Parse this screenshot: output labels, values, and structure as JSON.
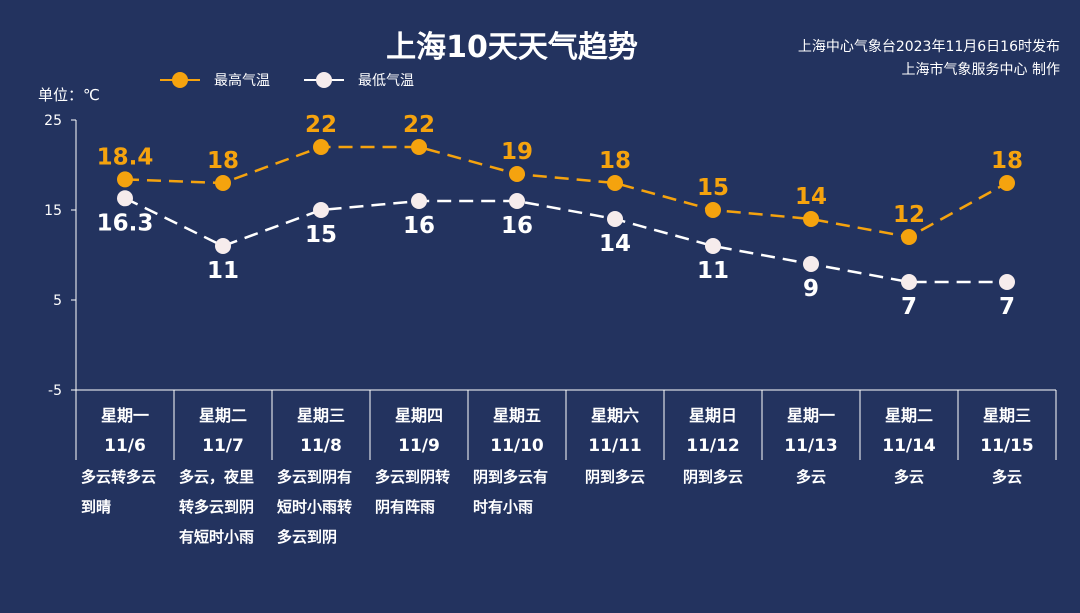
{
  "title": "上海10天天气趋势",
  "issuer": {
    "line1": "上海中心气象台2023年11月6日16时发布",
    "line2": "上海市气象服务中心 制作"
  },
  "unit_label": "单位：℃",
  "colors": {
    "background": "#23335f",
    "high": "#f5a30e",
    "low": "#ffffff",
    "low_marker": "#f6ecec"
  },
  "chart_data": {
    "type": "line",
    "title": "上海10天天气趋势",
    "ylabel": "单位：℃",
    "ylim": [
      -5,
      25
    ],
    "yticks": [
      25,
      15,
      5,
      -5
    ],
    "categories": [
      {
        "weekday": "星期一",
        "date": "11/6",
        "weather": [
          "多云转多云",
          "到晴"
        ]
      },
      {
        "weekday": "星期二",
        "date": "11/7",
        "weather": [
          "多云，夜里",
          "转多云到阴",
          "有短时小雨"
        ]
      },
      {
        "weekday": "星期三",
        "date": "11/8",
        "weather": [
          "多云到阴有",
          "短时小雨转",
          "多云到阴"
        ]
      },
      {
        "weekday": "星期四",
        "date": "11/9",
        "weather": [
          "多云到阴转",
          "阴有阵雨"
        ]
      },
      {
        "weekday": "星期五",
        "date": "11/10",
        "weather": [
          "阴到多云有",
          "时有小雨"
        ]
      },
      {
        "weekday": "星期六",
        "date": "11/11",
        "weather": [
          "阴到多云"
        ]
      },
      {
        "weekday": "星期日",
        "date": "11/12",
        "weather": [
          "阴到多云"
        ]
      },
      {
        "weekday": "星期一",
        "date": "11/13",
        "weather": [
          "多云"
        ]
      },
      {
        "weekday": "星期二",
        "date": "11/14",
        "weather": [
          "多云"
        ]
      },
      {
        "weekday": "星期三",
        "date": "11/15",
        "weather": [
          "多云"
        ]
      }
    ],
    "series": [
      {
        "name": "最高气温",
        "values": [
          18.4,
          18,
          22,
          22,
          19,
          18,
          15,
          14,
          12,
          18
        ]
      },
      {
        "name": "最低气温",
        "values": [
          16.3,
          11,
          15,
          16,
          16,
          14,
          11,
          9,
          7,
          7
        ]
      }
    ],
    "legend": "top-left",
    "grid": false
  }
}
